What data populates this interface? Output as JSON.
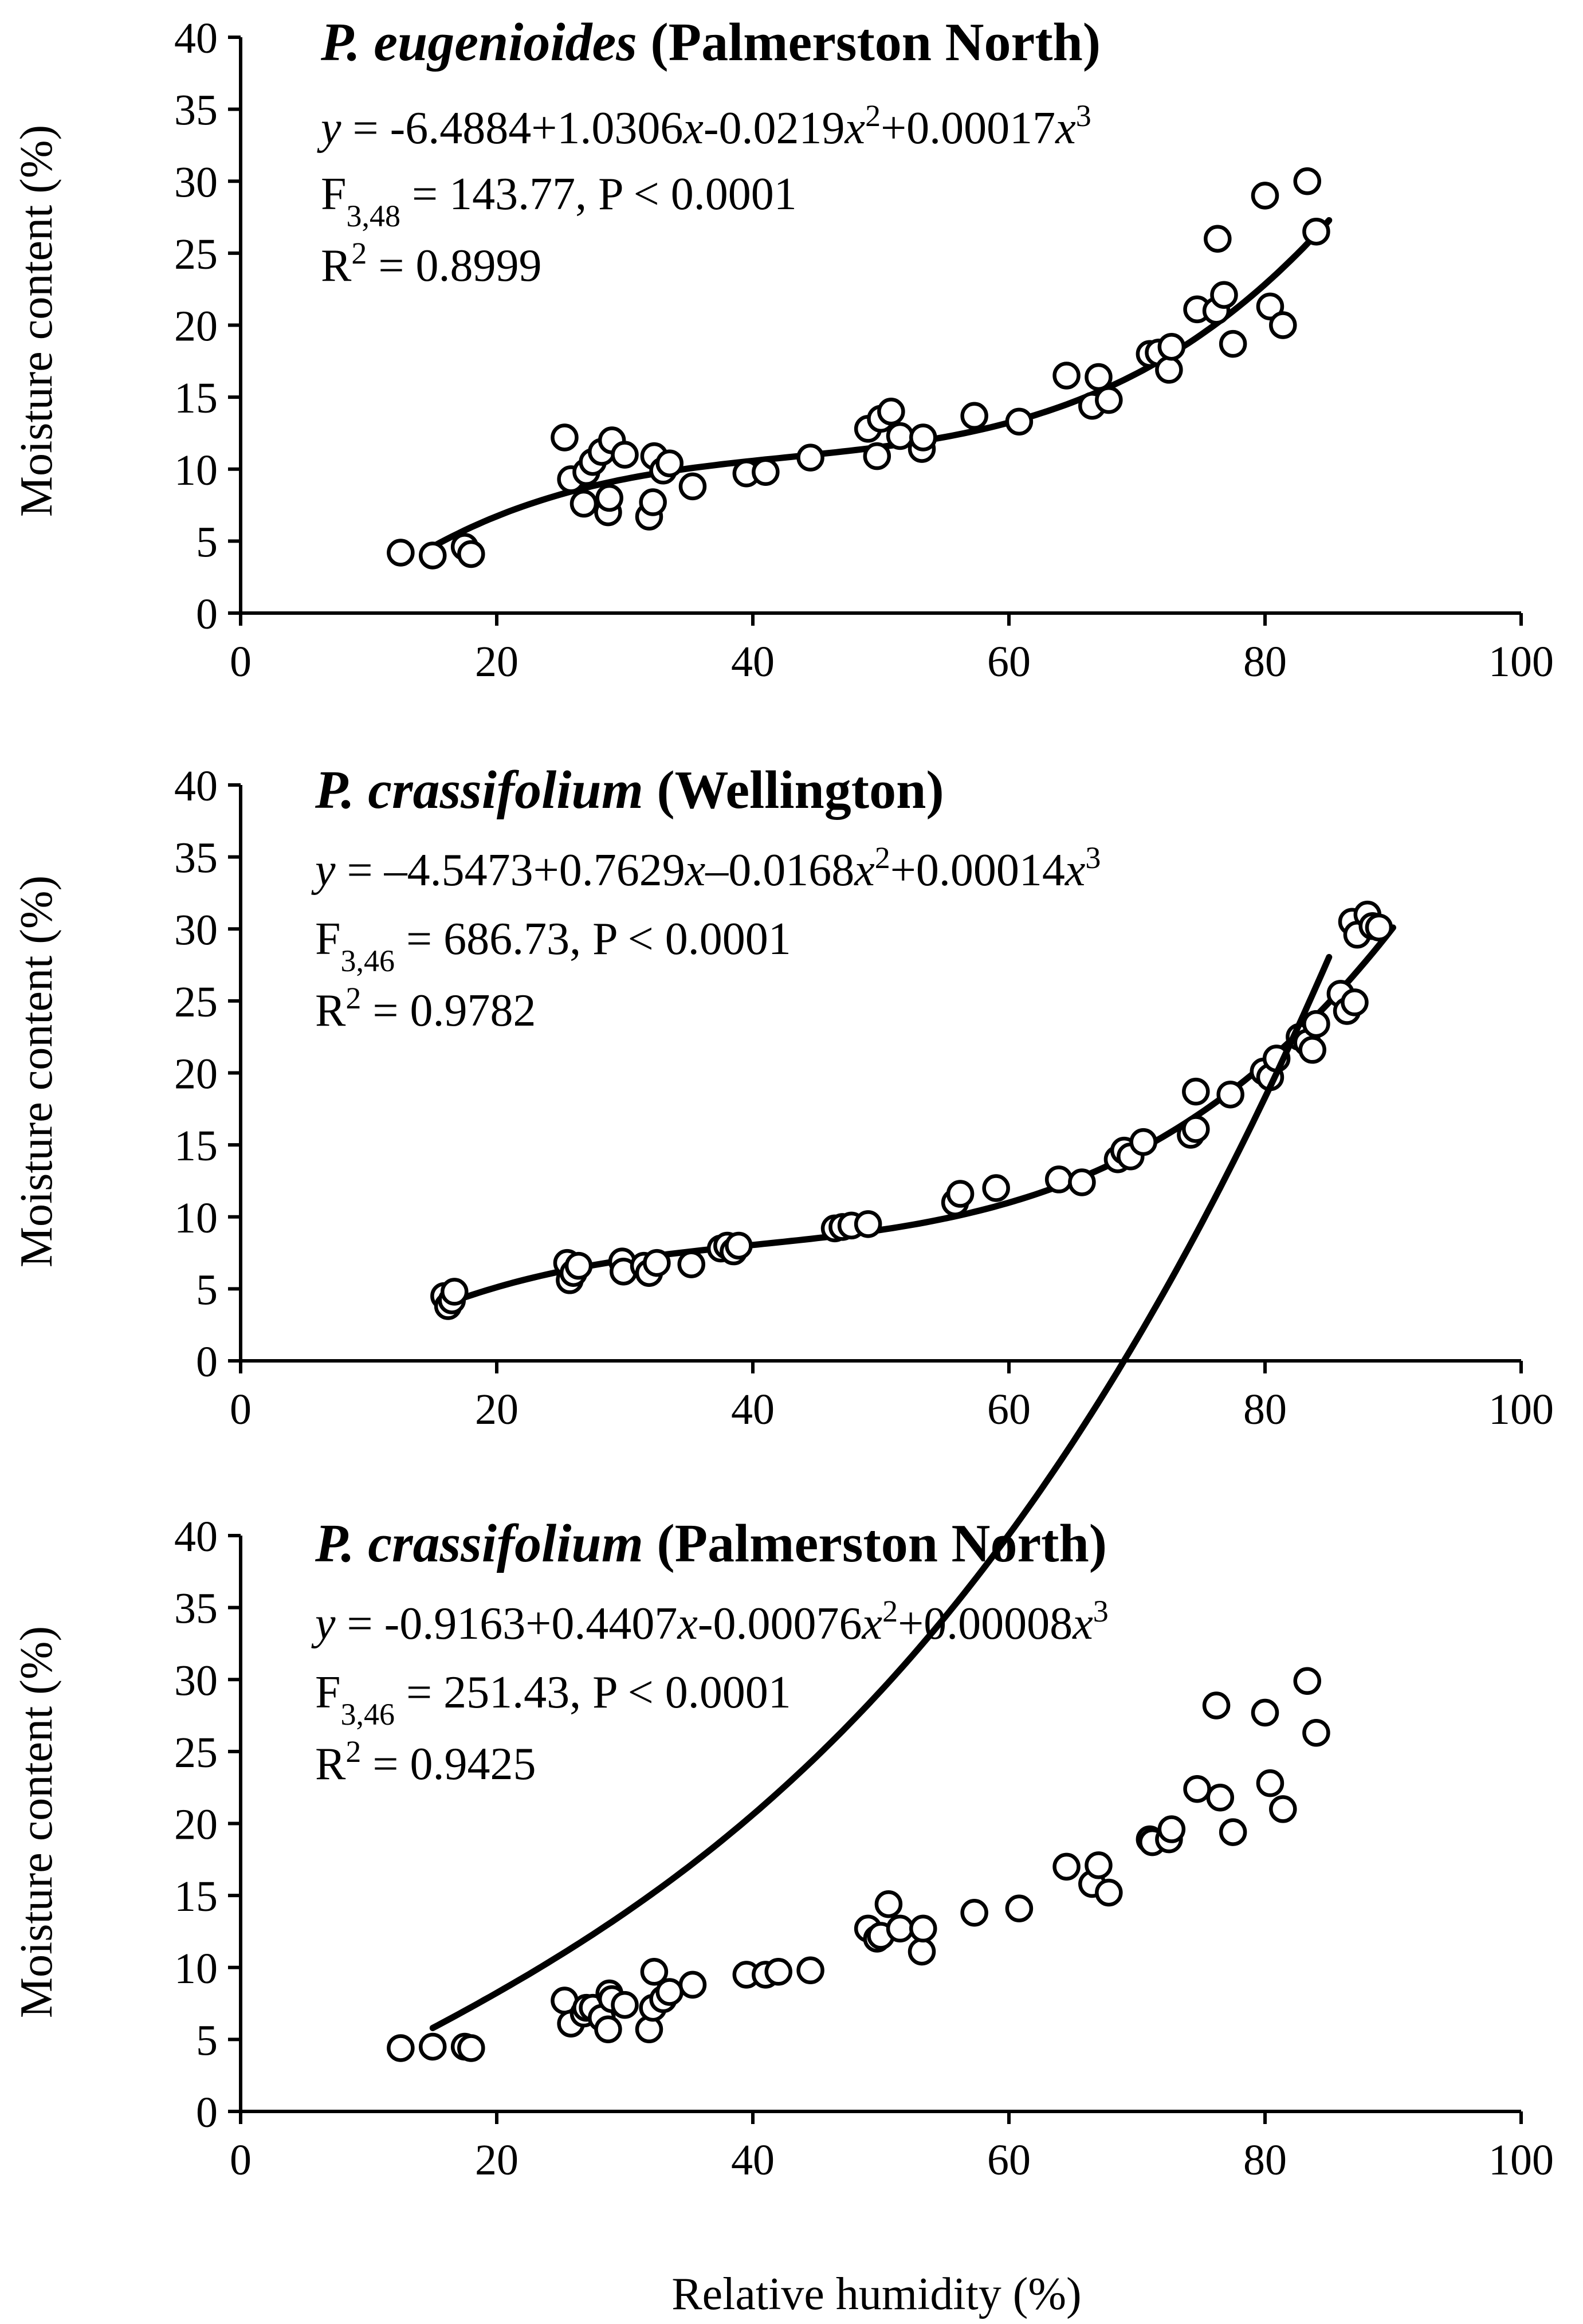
{
  "figure": {
    "xlabel": "Relative humidity (%)"
  },
  "chart_data": [
    {
      "type": "scatter",
      "title_species": "P. eugenioides",
      "title_location": "(Palmerston North)",
      "equation": {
        "y": "y",
        "eq": " = -6.4884+1.0306",
        "x1": "x",
        "t1": "-0.0219",
        "x2": "x",
        "sup2": "2",
        "t2": "+0.00017",
        "x3": "x",
        "sup3": "3"
      },
      "stat_f": {
        "F": "F",
        "sub": "3,48",
        "rest": " = 143.77, P < 0.0001"
      },
      "stat_r": {
        "R": "R",
        "sup": "2",
        "rest": " = 0.8999"
      },
      "coefficients": [
        -6.4884,
        1.0306,
        -0.0219,
        0.00017
      ],
      "fit_range": [
        15,
        85
      ],
      "xlabel": "",
      "ylabel": "Moisture content (%)",
      "xlim": [
        0,
        100
      ],
      "ylim": [
        0,
        40
      ],
      "xticks": [
        "0",
        "20",
        "40",
        "60",
        "80",
        "100"
      ],
      "yticks": [
        "0",
        "5",
        "10",
        "15",
        "20",
        "25",
        "30",
        "35",
        "40"
      ],
      "points": [
        [
          12.5,
          4.2
        ],
        [
          15,
          4
        ],
        [
          17.5,
          4.6
        ],
        [
          18,
          4.1
        ],
        [
          25.3,
          12.2
        ],
        [
          25.8,
          9.3
        ],
        [
          26.8,
          7.6
        ],
        [
          27,
          9.8
        ],
        [
          27.5,
          10.5
        ],
        [
          28.2,
          11.2
        ],
        [
          28.7,
          7
        ],
        [
          28.8,
          8
        ],
        [
          29,
          12
        ],
        [
          30,
          11
        ],
        [
          31.9,
          6.7
        ],
        [
          32.2,
          7.7
        ],
        [
          32.3,
          10.9
        ],
        [
          33,
          9.9
        ],
        [
          33.5,
          10.4
        ],
        [
          35.3,
          8.8
        ],
        [
          39.5,
          9.7
        ],
        [
          41,
          9.8
        ],
        [
          44.5,
          10.8
        ],
        [
          49,
          12.8
        ],
        [
          49.7,
          10.9
        ],
        [
          50,
          13.5
        ],
        [
          50.8,
          14
        ],
        [
          51.5,
          12.3
        ],
        [
          53.2,
          11.4
        ],
        [
          53.3,
          12.2
        ],
        [
          57.3,
          13.7
        ],
        [
          60.8,
          13.3
        ],
        [
          64.5,
          16.5
        ],
        [
          66.5,
          14.4
        ],
        [
          67,
          16.4
        ],
        [
          67.8,
          14.8
        ],
        [
          71,
          18
        ],
        [
          71.7,
          18.1
        ],
        [
          72.5,
          16.9
        ],
        [
          72.7,
          18.5
        ],
        [
          74.7,
          21.1
        ],
        [
          76.2,
          21
        ],
        [
          76.3,
          26
        ],
        [
          76.8,
          22.1
        ],
        [
          77.5,
          18.7
        ],
        [
          80,
          29
        ],
        [
          80.4,
          21.3
        ],
        [
          81.4,
          20
        ],
        [
          83.3,
          30
        ],
        [
          84,
          26.5
        ]
      ]
    },
    {
      "type": "scatter",
      "title_species": "P. crassifolium",
      "title_location": "(Wellington)",
      "equation": {
        "y": "y",
        "eq": " = –4.5473+0.7629",
        "x1": "x",
        "t1": "–0.0168",
        "x2": "x",
        "sup2": "2",
        "t2": "+0.00014",
        "x3": "x",
        "sup3": "3"
      },
      "stat_f": {
        "F": "F",
        "sub": "3,46",
        "rest": " = 686.73, P < 0.0001"
      },
      "stat_r": {
        "R": "R",
        "sup": "2",
        "rest": " = 0.9782"
      },
      "coefficients": [
        -4.5473,
        0.7629,
        -0.0168,
        0.00014
      ],
      "fit_range": [
        16,
        90
      ],
      "xlabel": "",
      "ylabel": "Moisture content (%)",
      "xlim": [
        0,
        100
      ],
      "ylim": [
        0,
        40
      ],
      "xticks": [
        "0",
        "20",
        "40",
        "60",
        "80",
        "100"
      ],
      "yticks": [
        "0",
        "5",
        "10",
        "15",
        "20",
        "25",
        "30",
        "35",
        "40"
      ],
      "points": [
        [
          15.9,
          4.5
        ],
        [
          16.2,
          3.8
        ],
        [
          16.5,
          4.2
        ],
        [
          16.7,
          4.8
        ],
        [
          25.5,
          6.8
        ],
        [
          25.7,
          5.6
        ],
        [
          26,
          6.1
        ],
        [
          26.4,
          6.6
        ],
        [
          29.8,
          6.9
        ],
        [
          29.9,
          6.2
        ],
        [
          31.5,
          6.6
        ],
        [
          31.9,
          6.1
        ],
        [
          32.5,
          6.8
        ],
        [
          35.2,
          6.7
        ],
        [
          37.5,
          7.8
        ],
        [
          38,
          8
        ],
        [
          38.5,
          7.6
        ],
        [
          38.9,
          8
        ],
        [
          46.4,
          9.2
        ],
        [
          47,
          9.3
        ],
        [
          47.7,
          9.4
        ],
        [
          49,
          9.5
        ],
        [
          55.8,
          11
        ],
        [
          56.2,
          11.6
        ],
        [
          59,
          12
        ],
        [
          63.9,
          12.6
        ],
        [
          65.7,
          12.4
        ],
        [
          68.5,
          14
        ],
        [
          69,
          14.6
        ],
        [
          69.5,
          14.2
        ],
        [
          70.5,
          15.2
        ],
        [
          74.2,
          15.7
        ],
        [
          74.6,
          16.1
        ],
        [
          74.6,
          18.7
        ],
        [
          77.3,
          18.5
        ],
        [
          79.9,
          20.1
        ],
        [
          80.4,
          19.7
        ],
        [
          80.9,
          21
        ],
        [
          82.7,
          22.5
        ],
        [
          83.3,
          22.1
        ],
        [
          83.7,
          21.6
        ],
        [
          84,
          23.4
        ],
        [
          85.9,
          25.5
        ],
        [
          86.4,
          24.3
        ],
        [
          86.8,
          30.5
        ],
        [
          87,
          24.9
        ],
        [
          87.2,
          29.6
        ],
        [
          88,
          31
        ],
        [
          88.4,
          30.2
        ],
        [
          88.9,
          30.1
        ]
      ]
    },
    {
      "type": "scatter",
      "title_species": "P. crassifolium",
      "title_location": "(Palmerston North)",
      "equation": {
        "y": "y",
        "eq": " = -0.9163+0.4407",
        "x1": "x",
        "t1": "-0.00076",
        "x2": "x",
        "sup2": "2",
        "t2": "+0.00008",
        "x3": "x",
        "sup3": "3"
      },
      "stat_f": {
        "F": "F",
        "sub": "3,46",
        "rest": " = 251.43, P < 0.0001"
      },
      "stat_r": {
        "R": "R",
        "sup": "2",
        "rest": " = 0.9425"
      },
      "coefficients": [
        -0.9163,
        0.4407,
        -0.00076,
        8e-05
      ],
      "fit_range": [
        15,
        85
      ],
      "xlabel": "Relative humidity (%)",
      "ylabel": "Moisture content (%)",
      "xlim": [
        0,
        100
      ],
      "ylim": [
        0,
        40
      ],
      "xticks": [
        "0",
        "20",
        "40",
        "60",
        "80",
        "100"
      ],
      "yticks": [
        "0",
        "5",
        "10",
        "15",
        "20",
        "25",
        "30",
        "35",
        "40"
      ],
      "points": [
        [
          12.5,
          4.4
        ],
        [
          15,
          4.5
        ],
        [
          17.5,
          4.5
        ],
        [
          18,
          4.4
        ],
        [
          25.3,
          7.7
        ],
        [
          25.8,
          6.1
        ],
        [
          26.8,
          6.8
        ],
        [
          27,
          7.2
        ],
        [
          27.5,
          7.2
        ],
        [
          28.2,
          6.5
        ],
        [
          28.7,
          5.7
        ],
        [
          28.8,
          8.2
        ],
        [
          29,
          7.8
        ],
        [
          30,
          7.4
        ],
        [
          31.9,
          5.7
        ],
        [
          32.2,
          7.2
        ],
        [
          32.3,
          9.7
        ],
        [
          33,
          7.8
        ],
        [
          33.5,
          8.3
        ],
        [
          35.3,
          8.8
        ],
        [
          39.5,
          9.5
        ],
        [
          41,
          9.5
        ],
        [
          42,
          9.7
        ],
        [
          44.5,
          9.8
        ],
        [
          49,
          12.7
        ],
        [
          49.7,
          12
        ],
        [
          50,
          12.2
        ],
        [
          50.6,
          14.4
        ],
        [
          51.5,
          12.7
        ],
        [
          53.2,
          11.1
        ],
        [
          53.3,
          12.7
        ],
        [
          57.3,
          13.8
        ],
        [
          60.8,
          14.1
        ],
        [
          64.5,
          17
        ],
        [
          66.5,
          15.8
        ],
        [
          67,
          17.1
        ],
        [
          67.8,
          15.2
        ],
        [
          71,
          18.9
        ],
        [
          71.2,
          18.7
        ],
        [
          72.5,
          18.9
        ],
        [
          72.7,
          19.6
        ],
        [
          74.7,
          22.4
        ],
        [
          76.2,
          28.2
        ],
        [
          76.5,
          21.8
        ],
        [
          77.5,
          19.4
        ],
        [
          80,
          27.7
        ],
        [
          80.4,
          22.8
        ],
        [
          81.4,
          21
        ],
        [
          83.3,
          29.9
        ],
        [
          84,
          26.3
        ]
      ]
    }
  ]
}
